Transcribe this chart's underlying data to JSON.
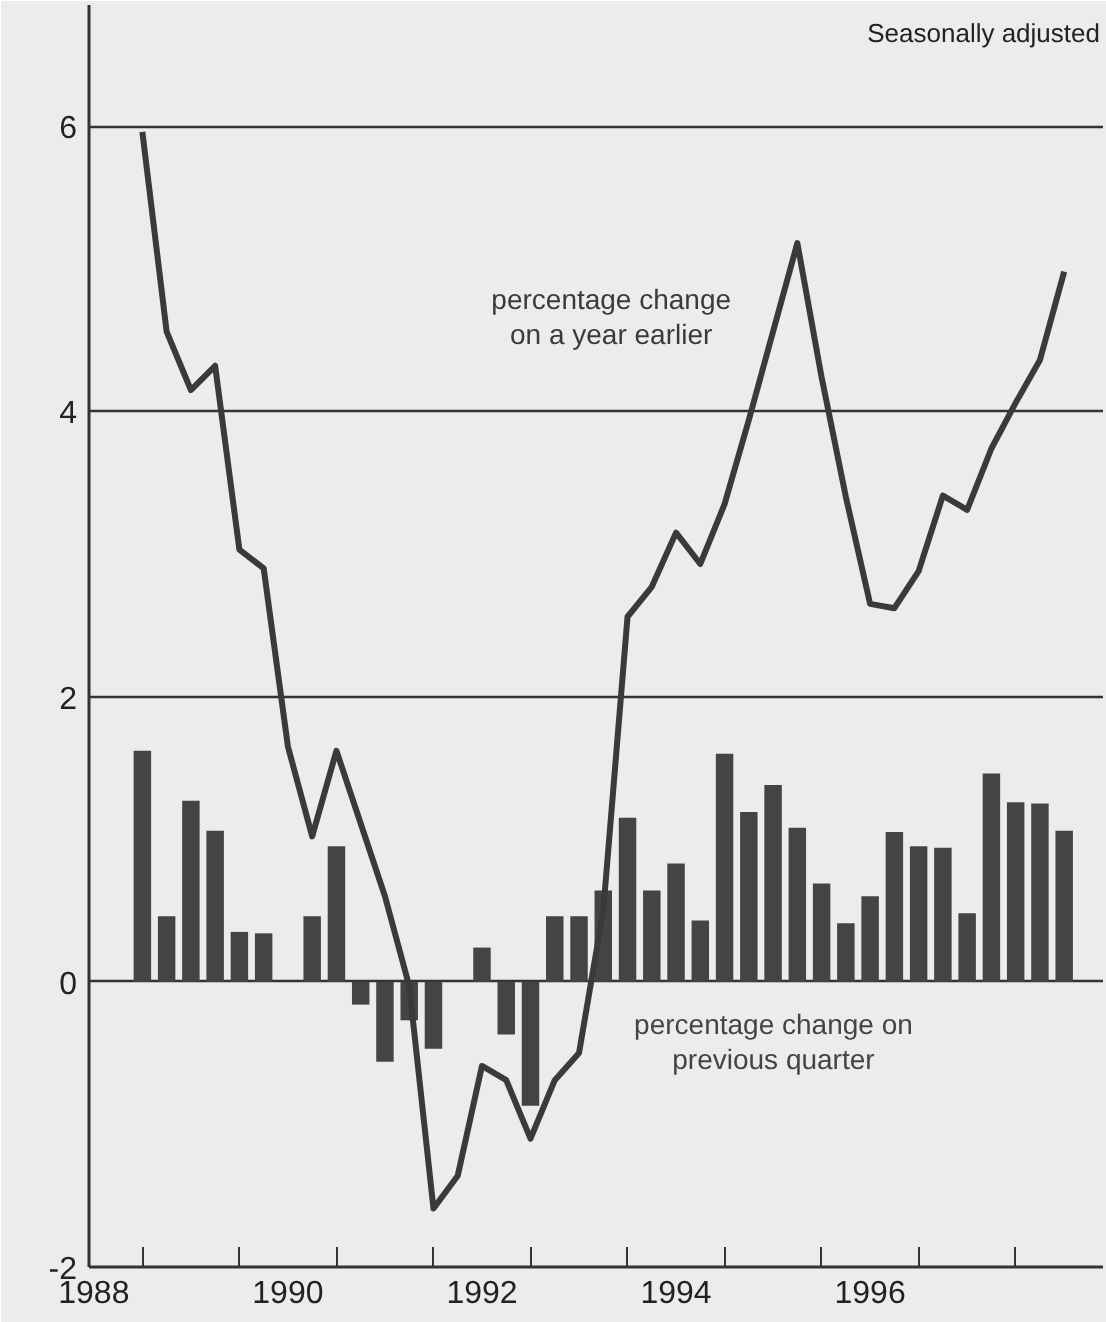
{
  "chart_data": {
    "type": "bar",
    "x": [
      1988.5,
      1988.75,
      1989,
      1989.25,
      1989.5,
      1989.75,
      1990,
      1990.25,
      1990.5,
      1990.75,
      1991,
      1991.25,
      1991.5,
      1991.75,
      1992,
      1992.25,
      1992.5,
      1992.75,
      1993,
      1993.25,
      1993.5,
      1993.75,
      1994,
      1994.25,
      1994.5,
      1994.75,
      1995,
      1995.25,
      1995.5,
      1995.75,
      1996,
      1996.25,
      1996.5,
      1996.75,
      1997,
      1997.25,
      1997.5,
      1997.75,
      1998
    ],
    "series": [
      {
        "name": "percentage change on\nprevious quarter",
        "color": "#444444",
        "values": [
          1.62,
          0.46,
          1.27,
          1.06,
          0.35,
          0.34,
          0,
          0.46,
          0.95,
          -0.16,
          -0.56,
          -0.27,
          -0.47,
          0,
          0.24,
          -0.37,
          -0.87,
          0.46,
          0.46,
          0.64,
          1.15,
          0.64,
          0.83,
          0.43,
          1.6,
          1.19,
          1.38,
          1.08,
          0.69,
          0.41,
          0.6,
          1.05,
          0.95,
          0.94,
          0.48,
          1.46,
          1.26,
          1.25,
          1.06
        ]
      },
      {
        "name": "percentage change\non a year earlier",
        "type": "line",
        "color": "#3a3a3a",
        "values": [
          5.96,
          4.56,
          4.15,
          4.32,
          3.03,
          2.9,
          1.65,
          1.02,
          1.62,
          1.11,
          0.6,
          -0.03,
          -1.59,
          -1.36,
          -0.59,
          -0.69,
          -1.1,
          -0.69,
          -0.5,
          0.5,
          2.56,
          2.77,
          3.15,
          2.93,
          3.35,
          3.94,
          4.56,
          5.18,
          4.24,
          3.4,
          2.65,
          2.62,
          2.88,
          3.41,
          3.31,
          3.74,
          4.06,
          4.36,
          4.98
        ]
      }
    ],
    "annotations": [
      "Seasonally adjusted"
    ],
    "xlim": [
      1987.95,
      1998.4
    ],
    "xticks": [
      1988,
      {
        "value": 1988.5,
        "label": null
      },
      {
        "value": 1989.5,
        "label": null
      },
      1990,
      {
        "value": 1990.5,
        "label": null
      },
      {
        "value": 1991.5,
        "label": null
      },
      1992,
      {
        "value": 1992.5,
        "label": null
      },
      {
        "value": 1993.5,
        "label": null
      },
      1994,
      {
        "value": 1994.5,
        "label": null
      },
      {
        "value": 1995.5,
        "label": null
      },
      1996,
      {
        "value": 1996.5,
        "label": null
      },
      {
        "value": 1997.5,
        "label": null
      }
    ],
    "ylim": [
      -2,
      6.85
    ],
    "yticks": [
      -2,
      0,
      2,
      4,
      6
    ],
    "grid": "y"
  }
}
